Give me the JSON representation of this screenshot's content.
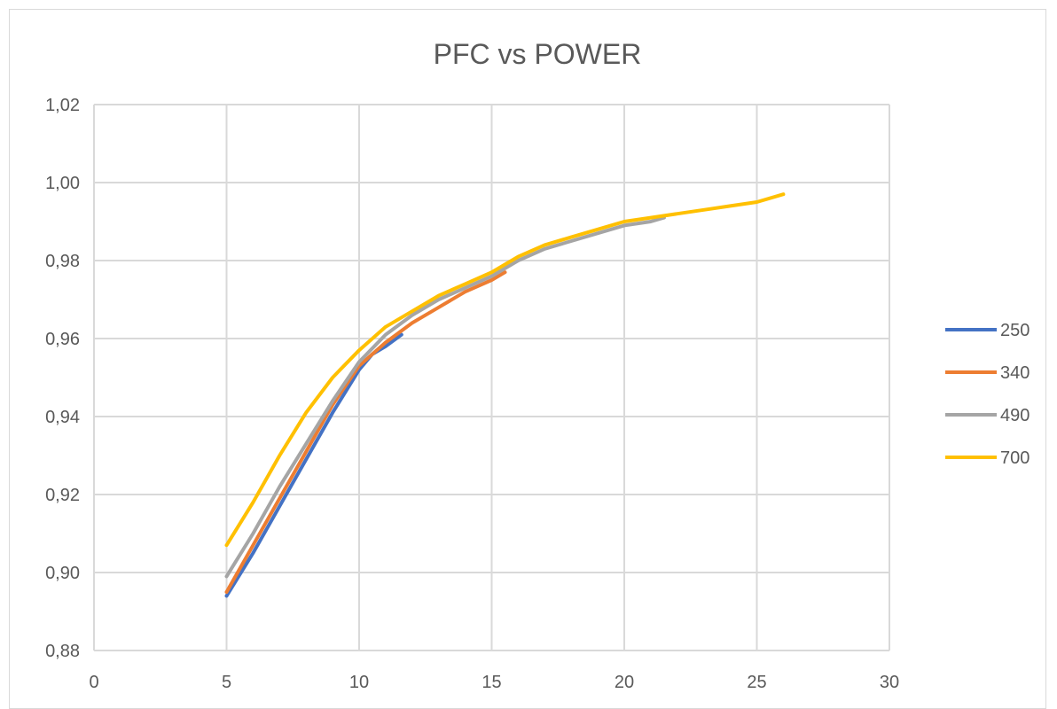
{
  "chart_data": {
    "type": "line",
    "title": "PFC vs POWER",
    "xlabel": "",
    "ylabel": "",
    "xlim": [
      0,
      30
    ],
    "ylim": [
      0.88,
      1.02
    ],
    "x_ticks": [
      "0",
      "5",
      "10",
      "15",
      "20",
      "25",
      "30"
    ],
    "y_ticks": [
      "0,88",
      "0,90",
      "0,92",
      "0,94",
      "0,96",
      "0,98",
      "1,00",
      "1,02"
    ],
    "grid": true,
    "legend_position": "right",
    "series": [
      {
        "name": "250",
        "color": "#4472c4",
        "x": [
          5,
          6,
          7,
          8,
          9,
          10,
          10.5,
          11,
          11.6
        ],
        "y": [
          0.894,
          0.905,
          0.917,
          0.929,
          0.941,
          0.952,
          0.956,
          0.958,
          0.961
        ]
      },
      {
        "name": "340",
        "color": "#ed7d31",
        "x": [
          5,
          6,
          7,
          8,
          9,
          10,
          11,
          12,
          13,
          14,
          15,
          15.5
        ],
        "y": [
          0.895,
          0.907,
          0.919,
          0.931,
          0.943,
          0.953,
          0.959,
          0.964,
          0.968,
          0.972,
          0.975,
          0.977
        ]
      },
      {
        "name": "490",
        "color": "#a5a5a5",
        "x": [
          5,
          6,
          7,
          8,
          9,
          10,
          11,
          12,
          13,
          14,
          15,
          16,
          17,
          18,
          19,
          20,
          21,
          21.5
        ],
        "y": [
          0.899,
          0.91,
          0.922,
          0.933,
          0.944,
          0.954,
          0.961,
          0.966,
          0.97,
          0.973,
          0.976,
          0.98,
          0.983,
          0.985,
          0.987,
          0.989,
          0.99,
          0.991
        ]
      },
      {
        "name": "700",
        "color": "#ffc000",
        "x": [
          5,
          6,
          7,
          8,
          9,
          10,
          11,
          12,
          13,
          14,
          15,
          16,
          17,
          18,
          19,
          20,
          21,
          22,
          23,
          24,
          25,
          26
        ],
        "y": [
          0.907,
          0.918,
          0.93,
          0.941,
          0.95,
          0.957,
          0.963,
          0.967,
          0.971,
          0.974,
          0.977,
          0.981,
          0.984,
          0.986,
          0.988,
          0.99,
          0.991,
          0.992,
          0.993,
          0.994,
          0.995,
          0.997
        ]
      }
    ]
  }
}
